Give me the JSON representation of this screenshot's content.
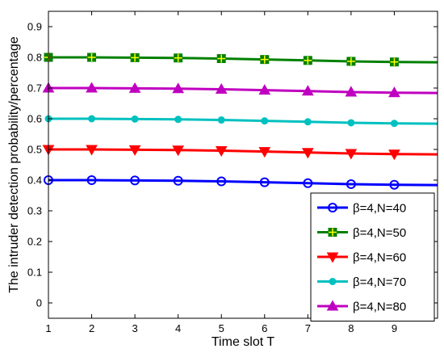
{
  "chart_data": {
    "type": "line",
    "title": "",
    "xlabel": "Time slot T",
    "ylabel": "The intruder detection probability/percentage",
    "xlim": [
      1,
      10
    ],
    "ylim": [
      -0.05,
      0.95
    ],
    "xticks": [
      1,
      2,
      3,
      4,
      5,
      6,
      7,
      8,
      9
    ],
    "yticks": [
      0,
      0.1,
      0.2,
      0.3,
      0.4,
      0.5,
      0.6,
      0.7,
      0.8,
      0.9
    ],
    "grid": false,
    "legend_position": "bottom-right",
    "x": [
      1,
      2,
      3,
      4,
      5,
      6,
      7,
      8,
      9,
      10
    ],
    "series": [
      {
        "name": "β=4,N=40",
        "color": "#0000ff",
        "marker": "circle",
        "values": [
          0.4,
          0.4,
          0.399,
          0.398,
          0.396,
          0.393,
          0.39,
          0.387,
          0.385,
          0.384
        ]
      },
      {
        "name": "β=4,N=50",
        "color": "#008000",
        "marker": "square",
        "values": [
          0.8,
          0.8,
          0.799,
          0.798,
          0.796,
          0.793,
          0.79,
          0.787,
          0.785,
          0.784
        ]
      },
      {
        "name": "β=4,N=60",
        "color": "#ff0000",
        "marker": "triangle-down",
        "values": [
          0.5,
          0.5,
          0.499,
          0.498,
          0.496,
          0.493,
          0.49,
          0.487,
          0.485,
          0.484
        ]
      },
      {
        "name": "β=4,N=70",
        "color": "#00c0c0",
        "marker": "dot",
        "values": [
          0.6,
          0.6,
          0.599,
          0.598,
          0.596,
          0.593,
          0.59,
          0.587,
          0.585,
          0.584
        ]
      },
      {
        "name": "β=4,N=80",
        "color": "#c000c0",
        "marker": "triangle-up",
        "values": [
          0.7,
          0.7,
          0.699,
          0.698,
          0.696,
          0.693,
          0.69,
          0.687,
          0.685,
          0.684
        ]
      }
    ]
  }
}
